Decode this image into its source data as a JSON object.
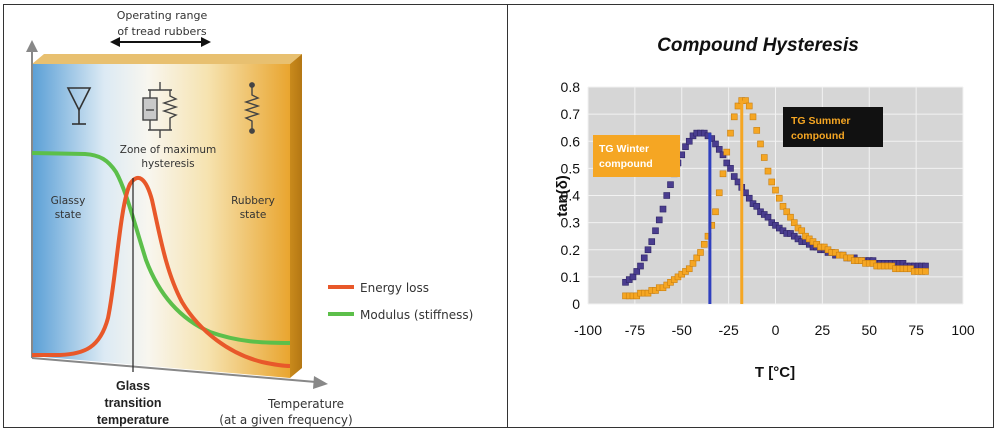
{
  "left_panel": {
    "operating_range": [
      "Operating range",
      "of tread rubbers"
    ],
    "zone_label": [
      "Zone of maximum",
      "hysteresis"
    ],
    "glassy_label": [
      "Glassy",
      "state"
    ],
    "rubbery_label": [
      "Rubbery",
      "state"
    ],
    "glass_transition": [
      "Glass",
      "transition",
      "temperature"
    ],
    "temperature_label": [
      "Temperature",
      "(at a given frequency)"
    ],
    "legend": [
      {
        "label": "Energy loss",
        "color": "#e8582a"
      },
      {
        "label": "Modulus (stiffness)",
        "color": "#5cbf4a"
      }
    ]
  },
  "chart_data": {
    "type": "scatter",
    "title": "Compound Hysteresis",
    "xlabel": "T [°C]",
    "ylabel": "tan(δ)",
    "xlim": [
      -100,
      100
    ],
    "ylim": [
      0,
      0.8
    ],
    "x_ticks": [
      "-100",
      "-75",
      "-50",
      "-25",
      "0",
      "25",
      "50",
      "75",
      "100"
    ],
    "y_ticks": [
      "0",
      "0.1",
      "0.2",
      "0.3",
      "0.4",
      "0.5",
      "0.6",
      "0.7",
      "0.8"
    ],
    "grid": true,
    "series": [
      {
        "name": "TG Winter compound",
        "color": "#4a3d8f",
        "tg": -35,
        "tg_color": "#2f3fbf",
        "points": [
          [
            -80,
            0.08
          ],
          [
            -78,
            0.09
          ],
          [
            -76,
            0.1
          ],
          [
            -74,
            0.12
          ],
          [
            -72,
            0.14
          ],
          [
            -70,
            0.17
          ],
          [
            -68,
            0.2
          ],
          [
            -66,
            0.23
          ],
          [
            -64,
            0.27
          ],
          [
            -62,
            0.31
          ],
          [
            -60,
            0.35
          ],
          [
            -58,
            0.4
          ],
          [
            -56,
            0.44
          ],
          [
            -54,
            0.48
          ],
          [
            -52,
            0.52
          ],
          [
            -50,
            0.55
          ],
          [
            -48,
            0.58
          ],
          [
            -46,
            0.6
          ],
          [
            -44,
            0.62
          ],
          [
            -42,
            0.63
          ],
          [
            -40,
            0.63
          ],
          [
            -38,
            0.63
          ],
          [
            -36,
            0.62
          ],
          [
            -34,
            0.61
          ],
          [
            -32,
            0.59
          ],
          [
            -30,
            0.57
          ],
          [
            -28,
            0.55
          ],
          [
            -26,
            0.52
          ],
          [
            -24,
            0.5
          ],
          [
            -22,
            0.47
          ],
          [
            -20,
            0.45
          ],
          [
            -18,
            0.43
          ],
          [
            -16,
            0.41
          ],
          [
            -14,
            0.39
          ],
          [
            -12,
            0.37
          ],
          [
            -10,
            0.36
          ],
          [
            -8,
            0.34
          ],
          [
            -6,
            0.33
          ],
          [
            -4,
            0.32
          ],
          [
            -2,
            0.3
          ],
          [
            0,
            0.29
          ],
          [
            2,
            0.28
          ],
          [
            4,
            0.27
          ],
          [
            6,
            0.26
          ],
          [
            8,
            0.26
          ],
          [
            10,
            0.25
          ],
          [
            12,
            0.24
          ],
          [
            14,
            0.23
          ],
          [
            16,
            0.23
          ],
          [
            18,
            0.22
          ],
          [
            20,
            0.21
          ],
          [
            22,
            0.21
          ],
          [
            24,
            0.2
          ],
          [
            26,
            0.2
          ],
          [
            28,
            0.19
          ],
          [
            30,
            0.19
          ],
          [
            32,
            0.18
          ],
          [
            34,
            0.18
          ],
          [
            36,
            0.18
          ],
          [
            38,
            0.17
          ],
          [
            40,
            0.17
          ],
          [
            42,
            0.17
          ],
          [
            44,
            0.16
          ],
          [
            46,
            0.16
          ],
          [
            48,
            0.16
          ],
          [
            50,
            0.16
          ],
          [
            52,
            0.16
          ],
          [
            54,
            0.15
          ],
          [
            56,
            0.15
          ],
          [
            58,
            0.15
          ],
          [
            60,
            0.15
          ],
          [
            62,
            0.15
          ],
          [
            64,
            0.15
          ],
          [
            66,
            0.15
          ],
          [
            68,
            0.15
          ],
          [
            70,
            0.14
          ],
          [
            72,
            0.14
          ],
          [
            74,
            0.14
          ],
          [
            76,
            0.14
          ],
          [
            78,
            0.14
          ],
          [
            80,
            0.14
          ]
        ]
      },
      {
        "name": "TG Summer compound",
        "color": "#f5a623",
        "tg": -18,
        "tg_color": "#f5a623",
        "points": [
          [
            -80,
            0.03
          ],
          [
            -78,
            0.03
          ],
          [
            -76,
            0.03
          ],
          [
            -74,
            0.03
          ],
          [
            -72,
            0.04
          ],
          [
            -70,
            0.04
          ],
          [
            -68,
            0.04
          ],
          [
            -66,
            0.05
          ],
          [
            -64,
            0.05
          ],
          [
            -62,
            0.06
          ],
          [
            -60,
            0.06
          ],
          [
            -58,
            0.07
          ],
          [
            -56,
            0.08
          ],
          [
            -54,
            0.09
          ],
          [
            -52,
            0.1
          ],
          [
            -50,
            0.11
          ],
          [
            -48,
            0.12
          ],
          [
            -46,
            0.13
          ],
          [
            -44,
            0.15
          ],
          [
            -42,
            0.17
          ],
          [
            -40,
            0.19
          ],
          [
            -38,
            0.22
          ],
          [
            -36,
            0.25
          ],
          [
            -34,
            0.29
          ],
          [
            -32,
            0.34
          ],
          [
            -30,
            0.41
          ],
          [
            -28,
            0.48
          ],
          [
            -26,
            0.56
          ],
          [
            -24,
            0.63
          ],
          [
            -22,
            0.69
          ],
          [
            -20,
            0.73
          ],
          [
            -18,
            0.75
          ],
          [
            -16,
            0.75
          ],
          [
            -14,
            0.73
          ],
          [
            -12,
            0.69
          ],
          [
            -10,
            0.64
          ],
          [
            -8,
            0.59
          ],
          [
            -6,
            0.54
          ],
          [
            -4,
            0.49
          ],
          [
            -2,
            0.45
          ],
          [
            0,
            0.42
          ],
          [
            2,
            0.39
          ],
          [
            4,
            0.36
          ],
          [
            6,
            0.34
          ],
          [
            8,
            0.32
          ],
          [
            10,
            0.3
          ],
          [
            12,
            0.28
          ],
          [
            14,
            0.27
          ],
          [
            16,
            0.25
          ],
          [
            18,
            0.24
          ],
          [
            20,
            0.23
          ],
          [
            22,
            0.22
          ],
          [
            24,
            0.21
          ],
          [
            26,
            0.21
          ],
          [
            28,
            0.2
          ],
          [
            30,
            0.19
          ],
          [
            32,
            0.19
          ],
          [
            34,
            0.18
          ],
          [
            36,
            0.18
          ],
          [
            38,
            0.17
          ],
          [
            40,
            0.17
          ],
          [
            42,
            0.16
          ],
          [
            44,
            0.16
          ],
          [
            46,
            0.16
          ],
          [
            48,
            0.15
          ],
          [
            50,
            0.15
          ],
          [
            52,
            0.15
          ],
          [
            54,
            0.14
          ],
          [
            56,
            0.14
          ],
          [
            58,
            0.14
          ],
          [
            60,
            0.14
          ],
          [
            62,
            0.14
          ],
          [
            64,
            0.13
          ],
          [
            66,
            0.13
          ],
          [
            68,
            0.13
          ],
          [
            70,
            0.13
          ],
          [
            72,
            0.13
          ],
          [
            74,
            0.12
          ],
          [
            76,
            0.12
          ],
          [
            78,
            0.12
          ],
          [
            80,
            0.12
          ]
        ]
      }
    ],
    "annotations": [
      {
        "lines": [
          "TG Winter",
          "compound"
        ],
        "fill": "#f5a623",
        "text_color": "#ffffff"
      },
      {
        "lines": [
          "TG Summer",
          "compound"
        ],
        "fill": "#111111",
        "text_color": "#f5a623"
      }
    ]
  }
}
